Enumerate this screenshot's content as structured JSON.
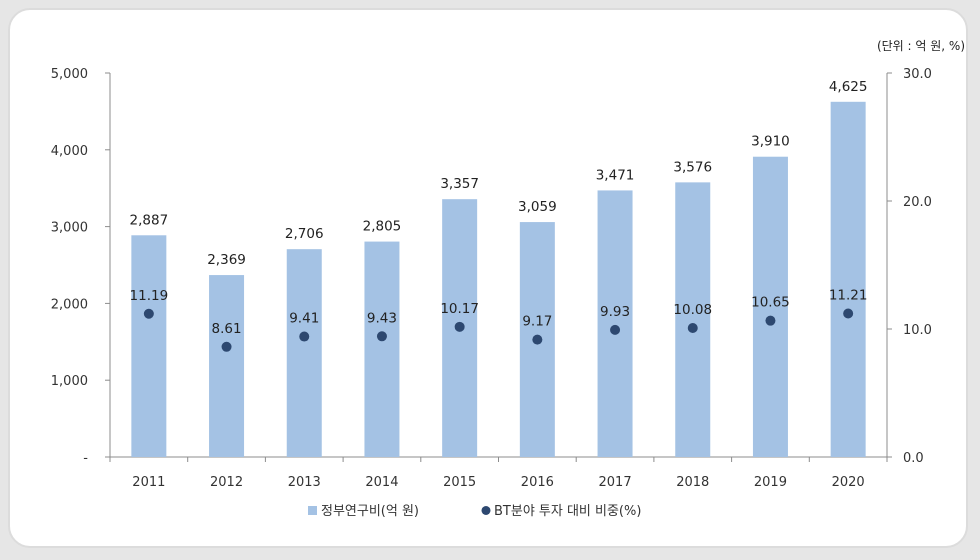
{
  "unit_note": "(단위 : 억 원, %)",
  "colors": {
    "bar": "#a4c2e4",
    "dot": "#2d4870",
    "axis": "#8c8c8c",
    "text": "#222222"
  },
  "chart_data": {
    "type": "bar",
    "categories": [
      "2011",
      "2012",
      "2013",
      "2014",
      "2015",
      "2016",
      "2017",
      "2018",
      "2019",
      "2020"
    ],
    "series": [
      {
        "name": "정부연구비(억 원)",
        "type": "bar",
        "axis": "left",
        "values": [
          2887,
          2369,
          2706,
          2805,
          3357,
          3059,
          3471,
          3576,
          3910,
          4625
        ],
        "labels": [
          "2,887",
          "2,369",
          "2,706",
          "2,805",
          "3,357",
          "3,059",
          "3,471",
          "3,576",
          "3,910",
          "4,625"
        ]
      },
      {
        "name": "BT분야 투자 대비 비중(%)",
        "type": "scatter",
        "axis": "right",
        "values": [
          11.19,
          8.61,
          9.41,
          9.43,
          10.17,
          9.17,
          9.93,
          10.08,
          10.65,
          11.21
        ],
        "labels": [
          "11.19",
          "8.61",
          "9.41",
          "9.43",
          "10.17",
          "9.17",
          "9.93",
          "10.08",
          "10.65",
          "11.21"
        ]
      }
    ],
    "y_left": {
      "min": 0,
      "max": 5000,
      "ticks": [
        0,
        1000,
        2000,
        3000,
        4000,
        5000
      ],
      "tick_labels": [
        "-",
        "1,000",
        "2,000",
        "3,000",
        "4,000",
        "5,000"
      ]
    },
    "y_right": {
      "min": 0,
      "max": 30,
      "ticks": [
        0,
        10,
        20,
        30
      ],
      "tick_labels": [
        "0.0",
        "10.0",
        "20.0",
        "30.0"
      ]
    },
    "grid": false,
    "legend": "bottom-center"
  }
}
